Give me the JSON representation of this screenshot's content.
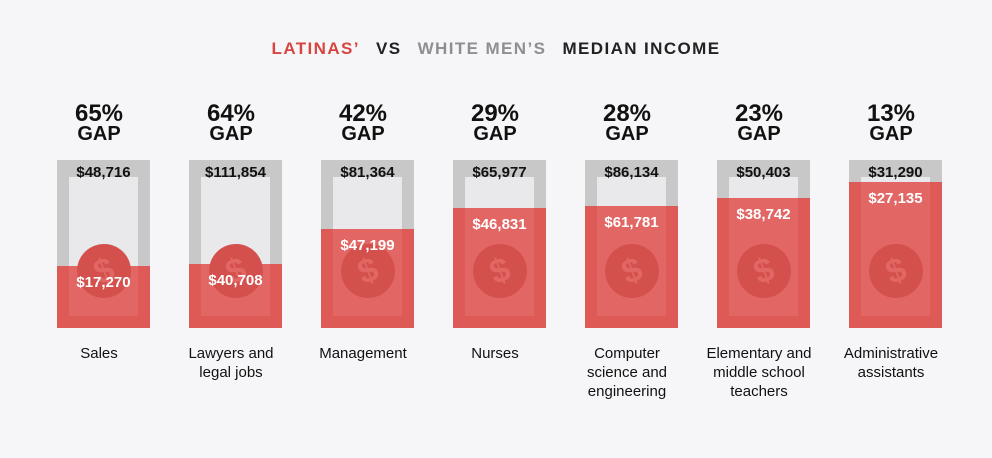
{
  "header": {
    "latinas": "LATINAS’",
    "vs": "VS",
    "white_men": "WHITE MEN’S",
    "median_income": "MEDIAN INCOME"
  },
  "colors": {
    "latinas": "#d64541",
    "white_men": "#8f8f8f",
    "bill_gray": "#c8c8c8",
    "bill_red": "#de5a57"
  },
  "icon": "dollar-coin-icon",
  "gap_word": "GAP",
  "chart_data": {
    "type": "bar",
    "categories": [
      "Sales",
      "Lawyers and\nlegal jobs",
      "Management",
      "Nurses",
      "Computer\nscience and\nengineering",
      "Elementary and\nmiddle school\nteachers",
      "Administrative\nassistants"
    ],
    "gaps": [
      "65%",
      "64%",
      "42%",
      "29%",
      "28%",
      "23%",
      "13%"
    ],
    "series": [
      {
        "name": "WHITE MEN’S",
        "labels": [
          "$48,716",
          "$111,854",
          "$81,364",
          "$65,977",
          "$86,134",
          "$50,403",
          "$31,290"
        ],
        "values": [
          48716,
          111854,
          81364,
          65977,
          86134,
          50403,
          31290
        ]
      },
      {
        "name": "LATINAS’",
        "labels": [
          "$17,270",
          "$40,708",
          "$47,199",
          "$46,831",
          "$61,781",
          "$38,742",
          "$27,135"
        ],
        "values": [
          17270,
          40708,
          47199,
          46831,
          61781,
          38742,
          27135
        ]
      }
    ],
    "ratios": [
      0.35,
      0.36,
      0.58,
      0.71,
      0.72,
      0.77,
      0.87
    ]
  }
}
